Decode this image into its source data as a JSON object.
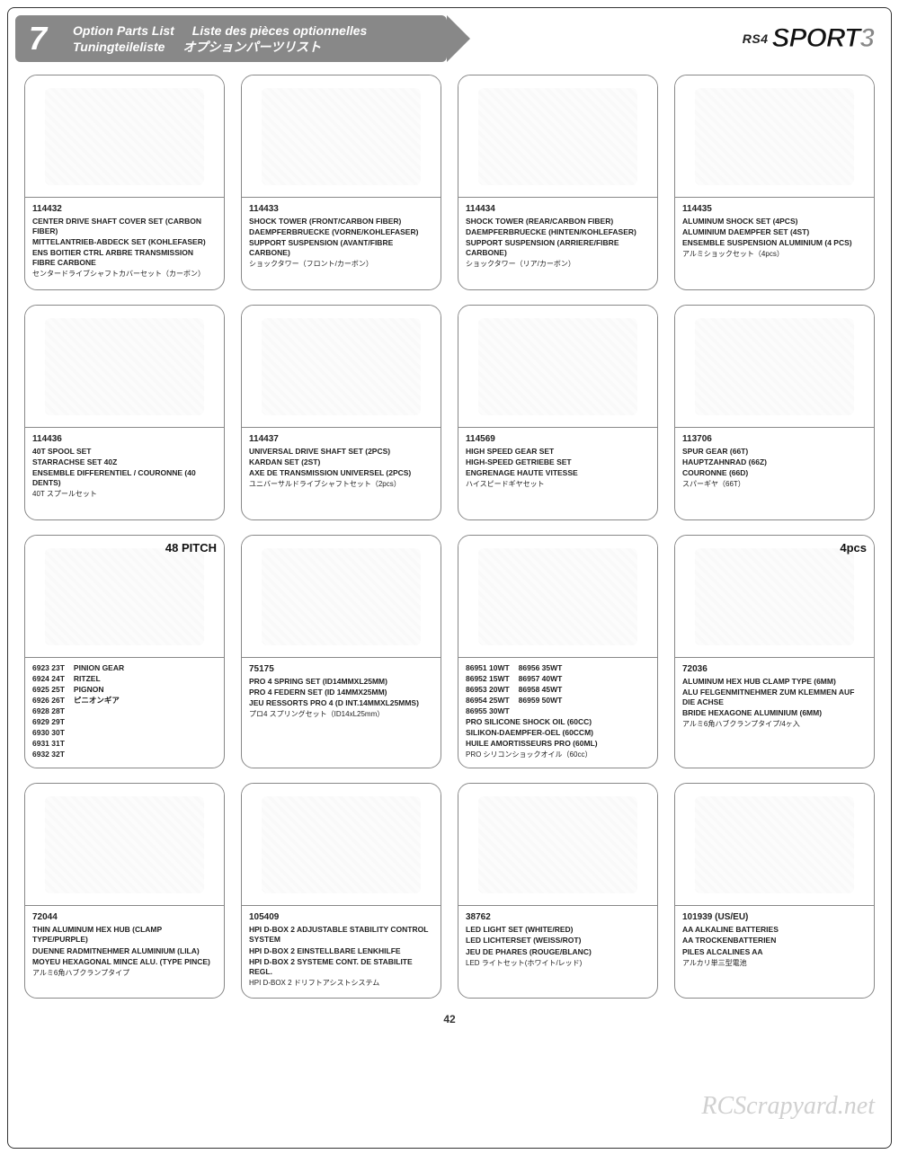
{
  "page_number": "42",
  "watermark": "RCScrapyard.net",
  "header": {
    "section_number": "7",
    "title_en": "Option Parts List",
    "title_fr": "Liste des pièces optionnelles",
    "title_de": "Tuningteileliste",
    "title_jp": "オプションパーツリスト",
    "logo_rs4": "RS4",
    "logo_sport": "SPORT",
    "logo_3": "3"
  },
  "cards": [
    {
      "pn": "114432",
      "lines": [
        "CENTER DRIVE SHAFT COVER SET (CARBON FIBER)",
        "MITTELANTRIEB-ABDECK SET (KOHLEFASER)",
        "ENS BOITIER CTRL ARBRE TRANSMISSION FIBRE CARBONE"
      ],
      "jp": "センタードライブシャフトカバーセット（カーボン）"
    },
    {
      "pn": "114433",
      "lines": [
        "SHOCK TOWER (FRONT/CARBON FIBER)",
        "DAEMPFERBRUECKE (VORNE/KOHLEFASER)",
        "SUPPORT SUSPENSION (AVANT/FIBRE CARBONE)"
      ],
      "jp": "ショックタワー（フロント/カーボン）"
    },
    {
      "pn": "114434",
      "lines": [
        "SHOCK TOWER (REAR/CARBON FIBER)",
        "DAEMPFERBRUECKE (HINTEN/KOHLEFASER)",
        "SUPPORT SUSPENSION (ARRIERE/FIBRE CARBONE)"
      ],
      "jp": "ショックタワー（リア/カーボン）"
    },
    {
      "pn": "114435",
      "lines": [
        "ALUMINUM SHOCK SET (4pcs)",
        "ALUMINIUM DAEMPFER SET (4ST)",
        "ENSEMBLE SUSPENSION ALUMINIUM (4 pcs)"
      ],
      "jp": "アルミショックセット（4pcs）"
    },
    {
      "pn": "114436",
      "lines": [
        "40T SPOOL SET",
        "STARRACHSE SET 40Z",
        "ENSEMBLE DIFFERENTIEL / COURONNE (40 DENTS)"
      ],
      "jp": "40T スプールセット"
    },
    {
      "pn": "114437",
      "lines": [
        "UNIVERSAL DRIVE SHAFT SET (2pcs)",
        "KARDAN SET (2ST)",
        "AXE DE TRANSMISSION UNIVERSEL (2pcs)"
      ],
      "jp": "ユニバーサルドライブシャフトセット（2pcs）"
    },
    {
      "pn": "114569",
      "lines": [
        "HIGH SPEED GEAR SET",
        "HIGH-SPEED GETRIEBE SET",
        "ENGRENAGE HAUTE VITESSE"
      ],
      "jp": "ハイスピードギヤセット"
    },
    {
      "pn": "113706",
      "lines": [
        "SPUR GEAR (66T)",
        "HAUPTZAHNRAD (66Z)",
        "COURONNE (66D)"
      ],
      "jp": "スパーギヤ（66T）"
    },
    {
      "corner": "48 PITCH",
      "cols": [
        [
          "6923 23T",
          "6924 24T",
          "6925 25T",
          "6926 26T",
          "6928 28T",
          "6929 29T",
          "6930 30T",
          "6931 31T",
          "6932 32T"
        ],
        [
          "PINION GEAR",
          "RITZEL",
          "PIGNON",
          "ピニオンギア"
        ]
      ]
    },
    {
      "pn": "75175",
      "lines": [
        "PRO 4 SPRING SET (ID14mmxL25mm)",
        "PRO 4 FEDERN SET (ID 14mmx25mm)",
        "JEU RESSORTS PRO 4 (D Int.14mmxL25mmS)"
      ],
      "jp": "プロ4 スプリングセット（ID14xL25mm）"
    },
    {
      "cols": [
        [
          "86951 10wt",
          "86952 15wt",
          "86953 20wt",
          "86954 25wt",
          "86955 30wt"
        ],
        [
          "86956 35wt",
          "86957 40wt",
          "86958 45wt",
          "86959 50wt"
        ]
      ],
      "lines": [
        "PRO SILICONE SHOCK OIL (60cc)",
        "SILIKON-DAEMPFER-OEL (60ccm)",
        "HUILE AMORTISSEURS PRO (60ml)"
      ],
      "jp": "PRO シリコンショックオイル（60cc）"
    },
    {
      "corner": "4pcs",
      "pn": "72036",
      "lines": [
        "ALUMINUM HEX HUB CLAMP TYPE (6mm)",
        "ALU FELGENMITNEHMER ZUM KLEMMEN AUF DIE ACHSE",
        "BRIDE HEXAGONE ALUMINIUM (6mm)"
      ],
      "jp": "アルミ6角ハブクランプタイプ/4ヶ入"
    },
    {
      "pn": "72044",
      "lines": [
        "THIN ALUMINUM HEX HUB (CLAMP TYPE/PURPLE)",
        "DUENNE RADMITNEHMER ALUMINIUM (LILA)",
        "MOYEU HEXAGONAL MINCE ALU. (TYPE PINCE)"
      ],
      "jp": "アルミ6角ハブクランプタイプ"
    },
    {
      "pn": "105409",
      "lines": [
        "HPI D-BOX 2 ADJUSTABLE STABILITY CONTROL SYSTEM",
        "HPI D-BOX 2 EINSTELLBARE LENKHILFE",
        "HPI D-BOX 2 SYSTEME CONT. DE STABILITE REGL."
      ],
      "jp": "HPI D-BOX 2 ドリフトアシストシステム"
    },
    {
      "pn": "38762",
      "lines": [
        "LED LIGHT SET (WHITE/RED)",
        "LED LICHTERSET (WEISS/ROT)",
        "JEU DE PHARES (ROUGE/BLANC)"
      ],
      "jp": "LED ライトセット(ホワイト/レッド)"
    },
    {
      "pn": "101939 (US/EU)",
      "lines": [
        "AA ALKALINE BATTERIES",
        "AA TROCKENBATTERIEN",
        "PILES ALCALINES AA"
      ],
      "jp": "アルカリ単三型電池"
    }
  ]
}
